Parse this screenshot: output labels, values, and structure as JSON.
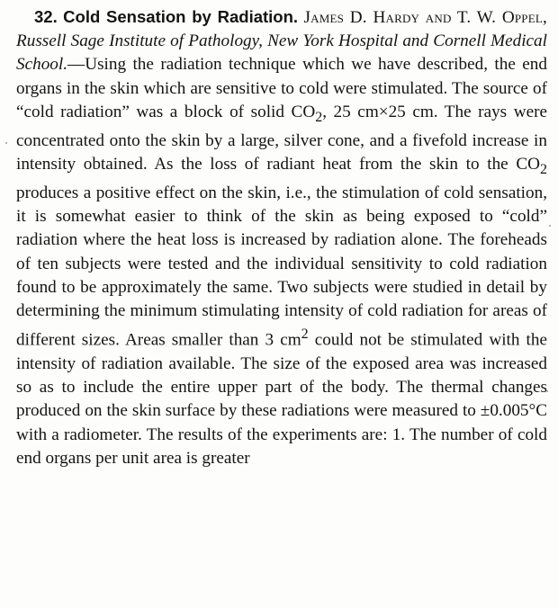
{
  "abstract": {
    "number": "32.",
    "title": "Cold Sensation by Radiation.",
    "authors": "James D. Hardy and T. W. Oppel,",
    "affiliation": "Russell Sage Institute of Pathology, New York Hospital and Cornell Medical School.",
    "dash": "—",
    "body_part_1": "Using the radiation technique which we have described, the end organs in the skin which are sensitive to cold were stimulated. The source of “cold radiation” was a block of solid CO",
    "sub_1": "2",
    "body_part_2": ", 25 cm×25 cm. The rays were concentrated onto the skin by a large, silver cone, and a fivefold increase in intensity obtained. As the loss of radiant heat from the skin to the CO",
    "sub_2": "2",
    "body_part_3": " produces a positive effect on the skin, i.e., the stimulation of cold sensation, it is somewhat easier to think of the skin as being exposed to “cold” radiation where the heat loss is increased by radiation alone. The foreheads of ten subjects were tested and the individual sensitivity to cold radiation found to be approximately the same. Two subjects were studied in detail by determining the minimum stimulating intensity of cold radiation for areas of different sizes. Areas smaller than 3 cm",
    "sup_1": "2",
    "body_part_4": " could not be stimulated with the intensity of radiation available. The size of the exposed area was increased so as to include the entire upper part of the body. The thermal changes produced on the skin surface by these radiations were measured to ±0.005°C with a radiometer. The results of the experiments are: 1. The number of cold end organs per unit area is greater"
  }
}
